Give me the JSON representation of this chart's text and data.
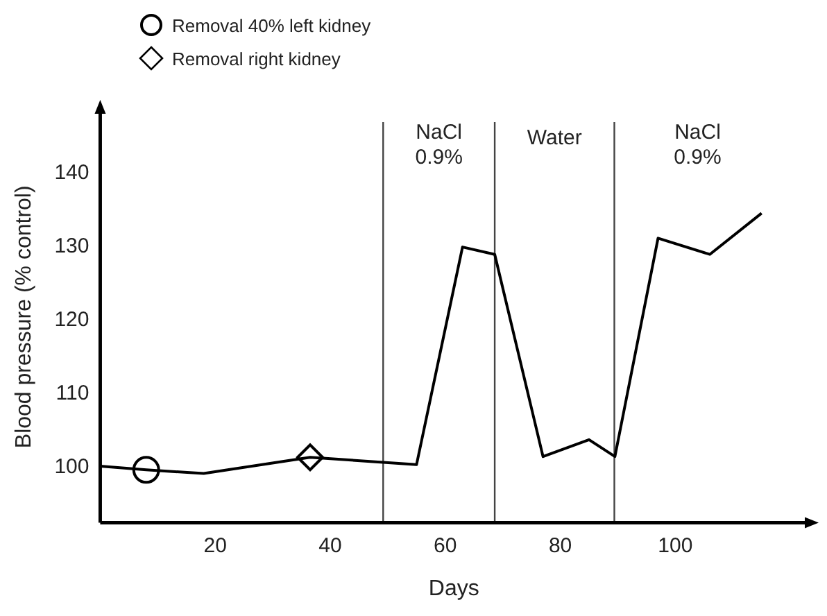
{
  "chart_data": {
    "type": "line",
    "xlabel": "Days",
    "ylabel": "Blood pressure (% control)",
    "xlim": [
      0,
      123
    ],
    "ylim": [
      92.5,
      148.5
    ],
    "xticks": [
      20,
      40,
      60,
      80,
      100
    ],
    "yticks": [
      100,
      110,
      120,
      130,
      140
    ],
    "grid": false,
    "legend": "top left",
    "tick_labels": "xy",
    "series": [
      {
        "color": "#000000",
        "marker": "none",
        "line_style": "solid",
        "x": [
          0,
          8,
          18,
          36.5,
          55,
          63,
          68.6,
          77,
          85,
          89.5,
          97,
          106,
          115
        ],
        "values": [
          100.2,
          99.7,
          99.2,
          101.4,
          100.4,
          130,
          129,
          101.5,
          103.8,
          101.5,
          131.2,
          129,
          134.6
        ]
      },
      {
        "type": "scatter",
        "name": "Removal 40% left kidney",
        "color": "#000000",
        "marker": "circle",
        "x": [
          8
        ],
        "values": [
          99.7
        ]
      },
      {
        "type": "scatter",
        "name": "Removal right kidney",
        "color": "#000000",
        "marker": "diamond",
        "x": [
          36.5
        ],
        "values": [
          101.4
        ]
      }
    ],
    "ref_lines": [
      {
        "axis": "x",
        "value": 49.2
      },
      {
        "axis": "x",
        "value": 68.6
      },
      {
        "axis": "x",
        "value": 89.4
      }
    ],
    "annotations": [
      "NaCl 0.9%",
      "Water",
      "NaCl 0.9%"
    ]
  }
}
